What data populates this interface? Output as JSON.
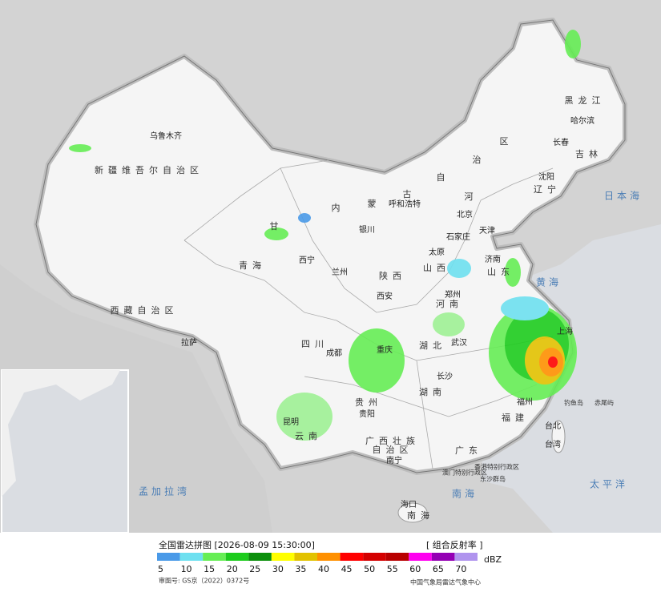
{
  "map": {
    "labels": [
      "乌鲁木齐",
      "新疆维吾尔自治区",
      "西藏自治区",
      "拉萨",
      "青海",
      "西宁",
      "甘",
      "兰州",
      "银川",
      "内",
      "蒙",
      "古",
      "自",
      "治",
      "区",
      "呼和浩特",
      "黑龙江",
      "哈尔滨",
      "长春",
      "吉林",
      "沈阳",
      "辽宁",
      "河",
      "北京",
      "天津",
      "石家庄",
      "太原",
      "山西",
      "济南",
      "山东",
      "郑州",
      "河南",
      "西安",
      "陕西",
      "四川",
      "成都",
      "重庆",
      "湖北",
      "武汉",
      "湖南",
      "长沙",
      "贵阳",
      "贵州",
      "昆明",
      "云南",
      "广西壮族",
      "自治区",
      "南宁",
      "广东",
      "澳门特别行政区",
      "香港特别行政区",
      "东沙群岛",
      "海口",
      "南海",
      "福州",
      "福建",
      "台北",
      "台湾",
      "钓鱼岛",
      "赤尾屿",
      "上海",
      "黄海",
      "日本海",
      "太平洋",
      "孟加拉湾",
      "南海"
    ],
    "footer": {
      "title": "全国雷达拼图 [2026-08-09 15:30:00]",
      "product": "[ 组合反射率 ]",
      "unit": "dBZ",
      "approval": "审图号: GS京（2022）0372号",
      "source": "中国气象局雷达气象中心"
    },
    "legend": [
      {
        "value": 5,
        "color": "#4a9ae8"
      },
      {
        "value": 10,
        "color": "#6ee0f0"
      },
      {
        "value": 15,
        "color": "#66ee55"
      },
      {
        "value": 20,
        "color": "#1dcc1d"
      },
      {
        "value": 25,
        "color": "#0b8f0b"
      },
      {
        "value": 30,
        "color": "#ffff00"
      },
      {
        "value": 35,
        "color": "#e2c200"
      },
      {
        "value": 40,
        "color": "#ff9000"
      },
      {
        "value": 45,
        "color": "#ff0000"
      },
      {
        "value": 50,
        "color": "#d40000"
      },
      {
        "value": 55,
        "color": "#b80000"
      },
      {
        "value": 60,
        "color": "#ff00f0"
      },
      {
        "value": 65,
        "color": "#9400b4"
      },
      {
        "value": 70,
        "color": "#b094ee"
      }
    ]
  }
}
